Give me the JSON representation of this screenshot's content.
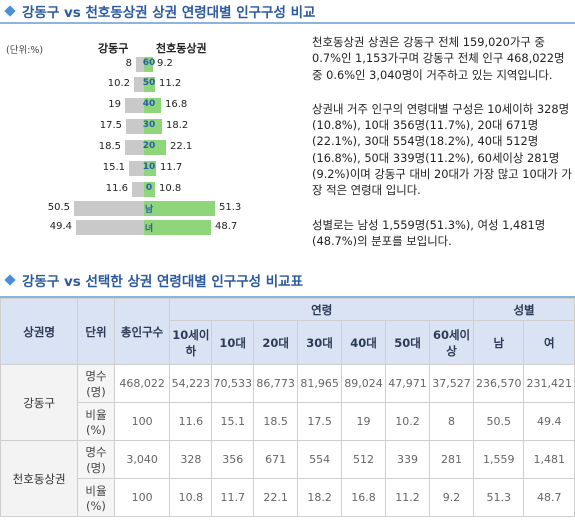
{
  "section1": {
    "title": "강동구 vs 천호동상권 상권 연령대별 인구구성 비교"
  },
  "pyramid": {
    "unit_label": "(단위:%)",
    "left_header": "강동구",
    "right_header": "천호동상권",
    "rows": [
      {
        "label": "60",
        "left": 8,
        "right": 9.2
      },
      {
        "label": "50",
        "left": 10.2,
        "right": 11.2
      },
      {
        "label": "40",
        "left": 19,
        "right": 16.8
      },
      {
        "label": "30",
        "left": 17.5,
        "right": 18.2
      },
      {
        "label": "20",
        "left": 18.5,
        "right": 22.1
      },
      {
        "label": "10",
        "left": 15.1,
        "right": 11.7
      },
      {
        "label": "0",
        "left": 11.6,
        "right": 10.8
      },
      {
        "label": "남",
        "left": 50.5,
        "right": 51.3
      },
      {
        "label": "녀",
        "left": 49.4,
        "right": 48.7
      }
    ]
  },
  "description": [
    "천호동상권 상권은 강동구 전체 159,020가구 중 0.7%인 1,153가구며 강동구 전체 인구 468,022명 중 0.6%인 3,040명이 거주하고 있는 지역입니다.",
    "상권내 거주 인구의 연령대별 구성은 10세이하 328명(10.8%), 10대 356명(11.7%), 20대 671명(22.1%), 30대 554명(18.2%), 40대 512명(16.8%), 50대 339명(11.2%), 60세이상 281명(9.2%)이며 강동구 대비 20대가 가장 많고 10대가 가장 적은 연령대 입니다.",
    "성별로는 남성 1,559명(51.3%), 여성 1,481명(48.7%)의 분포를 보입니다."
  ],
  "section2": {
    "title": "강동구 vs 선택한 상권 연령대별 인구구성 비교표"
  },
  "table": {
    "h_name": "상권명",
    "h_unit": "단위",
    "h_total": "총인구수",
    "h_age": "연령",
    "h_gender": "성별",
    "age_cols": [
      "10세이하",
      "10대",
      "20대",
      "30대",
      "40대",
      "50대",
      "60세이상"
    ],
    "gender_cols": [
      "남",
      "여"
    ],
    "groups": [
      {
        "name": "강동구",
        "rows": [
          {
            "unit": "명수(명)",
            "cells": [
              "468,022",
              "54,223",
              "70,533",
              "86,773",
              "81,965",
              "89,024",
              "47,971",
              "37,527",
              "236,570",
              "231,421"
            ]
          },
          {
            "unit": "비율(%)",
            "cells": [
              "100",
              "11.6",
              "15.1",
              "18.5",
              "17.5",
              "19",
              "10.2",
              "8",
              "50.5",
              "49.4"
            ]
          }
        ]
      },
      {
        "name": "천호동상권",
        "rows": [
          {
            "unit": "명수(명)",
            "cells": [
              "3,040",
              "328",
              "356",
              "671",
              "554",
              "512",
              "339",
              "281",
              "1,559",
              "1,481"
            ]
          },
          {
            "unit": "비율(%)",
            "cells": [
              "100",
              "10.8",
              "11.7",
              "22.1",
              "18.2",
              "16.8",
              "11.2",
              "9.2",
              "51.3",
              "48.7"
            ]
          }
        ]
      }
    ]
  }
}
